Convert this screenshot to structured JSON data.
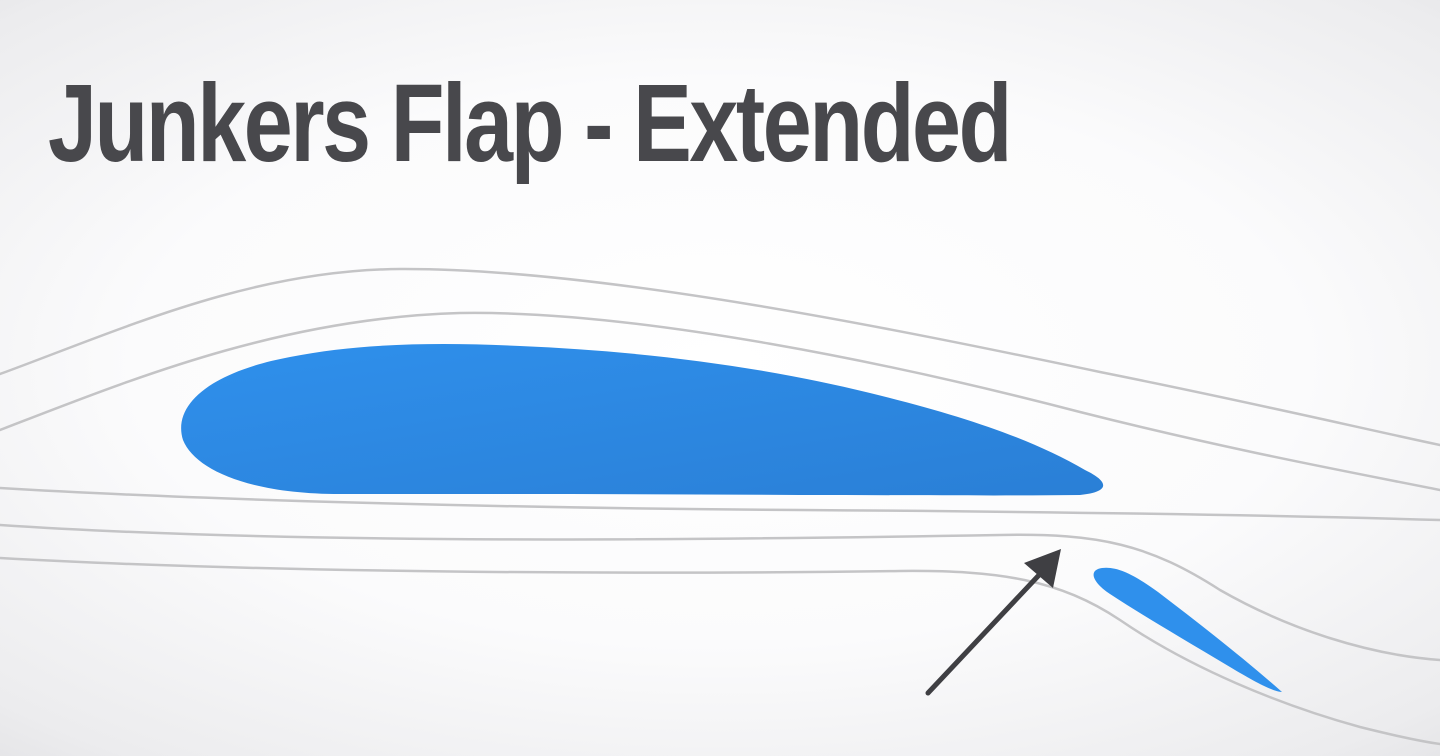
{
  "title": "Junkers Flap - Extended",
  "colors": {
    "title": "#48484c",
    "airfoil": "#2f90ec",
    "airfoil_dark": "#2a7fd6",
    "streamline": "#c4c4c6",
    "arrow": "#3f3f43"
  },
  "icons": {
    "main_wing": "airfoil-icon",
    "flap": "flap-icon",
    "arrow": "arrow-icon"
  }
}
